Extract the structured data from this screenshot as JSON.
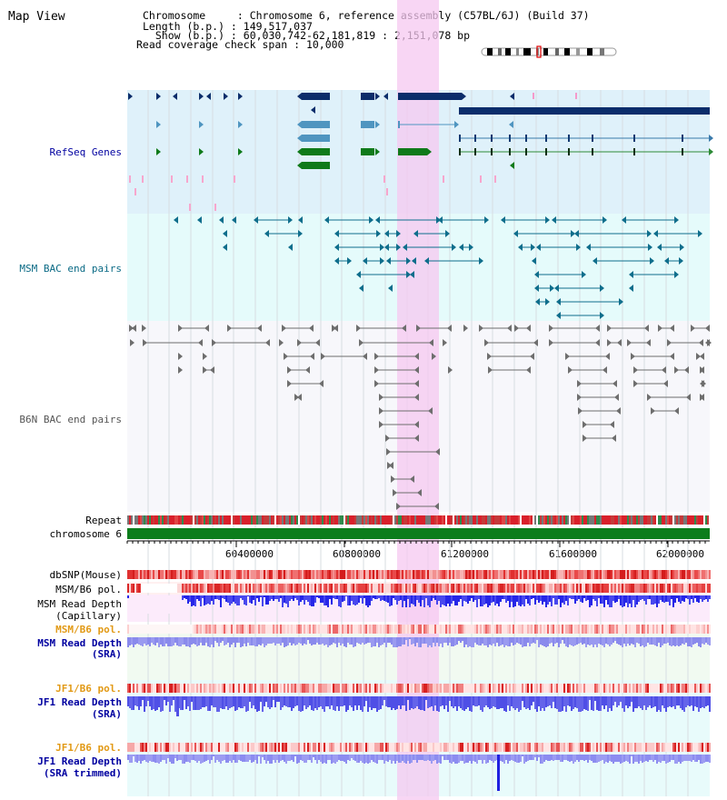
{
  "page": {
    "title": "Map View"
  },
  "header": {
    "chromosome_label": "Chromosome     : ",
    "chromosome_value": "Chromosome 6, reference assembly (C57BL/6J) (Build 37)",
    "length_label": "Length (b.p.) : ",
    "length_value": "149,517,037",
    "show_label": "  Show (b.p.) : ",
    "show_value": "60,030,742-62,181,819 : 2,151,078 bp",
    "span_label": "Read coverage check span : ",
    "span_value": "10,000"
  },
  "tracks": {
    "refseq_genes": "RefSeq Genes",
    "msm_bac": "MSM BAC end pairs",
    "b6n_bac": "B6N BAC end pairs",
    "repeat": "Repeat",
    "chromosome": "chromosome 6",
    "dbsnp": "dbSNP(Mouse)",
    "msm_b6_pol_1": "MSM/B6 pol.",
    "msm_read_depth_cap_1": "MSM Read Depth",
    "msm_read_depth_cap_2": "(Capillary)",
    "msm_b6_pol_2": "MSM/B6 pol.",
    "msm_read_depth_sra_1": "MSM Read Depth",
    "msm_read_depth_sra_2": "(SRA)",
    "jf1_b6_pol_1": "JF1/B6 pol.",
    "jf1_read_depth_1": "JF1 Read Depth",
    "jf1_read_depth_2": "(SRA)",
    "jf1_b6_pol_2": "JF1/B6 pol.",
    "jf1_read_depth_trim_1": "JF1 Read Depth",
    "jf1_read_depth_trim_2": "(SRA trimmed)"
  },
  "axis": {
    "ticks": [
      "60400000",
      "60800000",
      "61200000",
      "61600000",
      "62000000"
    ]
  },
  "colors": {
    "refseq_bg": "#dff1fa",
    "bac_bg": "#e5fbfb",
    "highlight": "#f5c8f0",
    "gene_navy": "#0b2d6b",
    "gene_steel": "#4f95c0",
    "gene_green": "#0f7a1a",
    "chromosome_green": "#0c7d1c",
    "label_blue": "#0000a0",
    "label_orange": "#e29a17"
  }
}
